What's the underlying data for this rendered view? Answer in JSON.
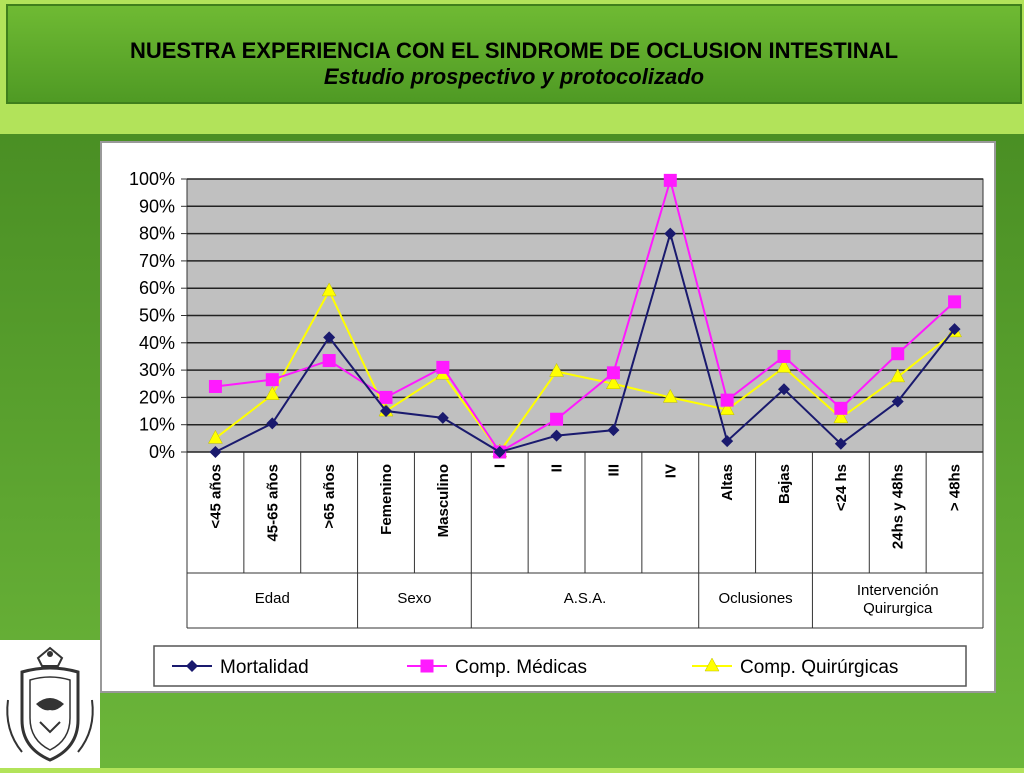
{
  "slide": {
    "title": "NUESTRA EXPERIENCIA CON EL SINDROME DE OCLUSION INTESTINAL",
    "subtitle": "Estudio prospectivo y protocolizado",
    "logo_icon": "university-crest-icon"
  },
  "colors": {
    "Mortalidad": "#1a1a6e",
    "Comp. Médicas": "#ff1aff",
    "Comp. Quirúrgicas": "#ffff00",
    "plot_bg": "#c0c0c0"
  },
  "chart_data": {
    "type": "line",
    "categories": [
      "<45 años",
      "45-65 años",
      ">65 años",
      "Femenino",
      "Masculino",
      "I",
      "II",
      "III",
      "IV",
      "Altas",
      "Bajas",
      "<24 hs",
      "24hs y 48hs",
      "> 48hs"
    ],
    "groups": [
      {
        "name": "Edad",
        "span": 3
      },
      {
        "name": "Sexo",
        "span": 2
      },
      {
        "name": "A.S.A.",
        "span": 4
      },
      {
        "name": "Oclusiones",
        "span": 2
      },
      {
        "name": "Intervención Quirurgica",
        "span": 3
      }
    ],
    "series": [
      {
        "name": "Mortalidad",
        "marker": "diamond",
        "values": [
          0,
          10.5,
          42,
          15,
          12.5,
          0,
          6,
          8,
          80,
          4,
          23,
          3,
          18.5,
          45
        ]
      },
      {
        "name": "Comp. Médicas",
        "marker": "square",
        "values": [
          24,
          26.5,
          33.5,
          20,
          31,
          0,
          12,
          29,
          99.5,
          19,
          35,
          16,
          36,
          55
        ]
      },
      {
        "name": "Comp. Quirúrgicas",
        "marker": "triangle",
        "values": [
          5,
          21,
          59,
          15,
          28.5,
          0,
          29.5,
          25,
          20,
          15.5,
          31,
          12.5,
          27.5,
          44
        ]
      }
    ],
    "ylim": [
      0,
      100
    ],
    "yticks": [
      "0%",
      "10%",
      "20%",
      "30%",
      "40%",
      "50%",
      "60%",
      "70%",
      "80%",
      "90%",
      "100%"
    ],
    "grid": true,
    "legend": "bottom"
  }
}
